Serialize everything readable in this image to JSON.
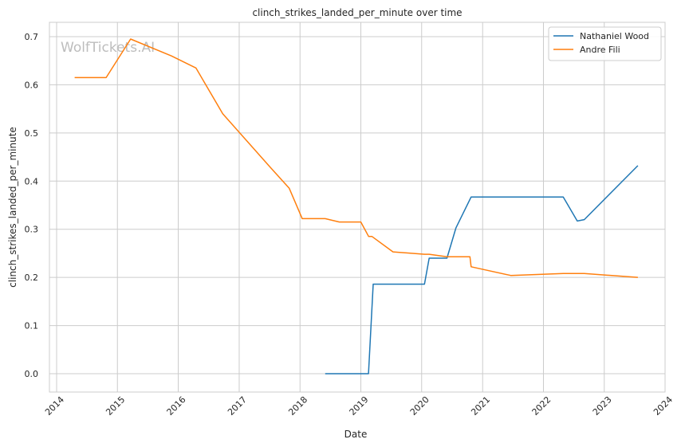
{
  "chart_data": {
    "type": "line",
    "title": "clinch_strikes_landed_per_minute over time",
    "xlabel": "Date",
    "ylabel": "clinch_strikes_landed_per_minute",
    "watermark": "WolfTickets.AI",
    "xlim": [
      "2014-01-01",
      "2024-01-01"
    ],
    "ylim": [
      0.0,
      0.7
    ],
    "x_ticks": [
      "2014",
      "2015",
      "2016",
      "2017",
      "2018",
      "2019",
      "2020",
      "2021",
      "2022",
      "2023",
      "2024"
    ],
    "y_ticks": [
      "0.0",
      "0.1",
      "0.2",
      "0.3",
      "0.4",
      "0.5",
      "0.6",
      "0.7"
    ],
    "grid": true,
    "legend_position": "top-right",
    "series": [
      {
        "name": "Nathaniel Wood",
        "color": "#1f77b4",
        "points": [
          [
            "2018-06-01",
            0.0
          ],
          [
            "2019-02-16",
            0.0
          ],
          [
            "2019-03-16",
            0.186
          ],
          [
            "2020-01-18",
            0.186
          ],
          [
            "2020-02-15",
            0.24
          ],
          [
            "2020-06-01",
            0.24
          ],
          [
            "2020-07-25",
            0.303
          ],
          [
            "2020-10-24",
            0.367
          ],
          [
            "2022-04-30",
            0.367
          ],
          [
            "2022-07-23",
            0.317
          ],
          [
            "2022-09-03",
            0.32
          ],
          [
            "2023-07-22",
            0.432
          ]
        ]
      },
      {
        "name": "Andre Fili",
        "color": "#ff7f0e",
        "points": [
          [
            "2014-04-19",
            0.615
          ],
          [
            "2014-10-25",
            0.615
          ],
          [
            "2015-03-21",
            0.695
          ],
          [
            "2015-11-21",
            0.66
          ],
          [
            "2016-04-16",
            0.635
          ],
          [
            "2016-09-24",
            0.54
          ],
          [
            "2017-07-08",
            0.428
          ],
          [
            "2017-10-28",
            0.385
          ],
          [
            "2018-01-14",
            0.322
          ],
          [
            "2018-06-01",
            0.322
          ],
          [
            "2018-08-25",
            0.315
          ],
          [
            "2019-01-01",
            0.315
          ],
          [
            "2019-02-17",
            0.285
          ],
          [
            "2019-03-09",
            0.285
          ],
          [
            "2019-07-13",
            0.253
          ],
          [
            "2020-01-18",
            0.248
          ],
          [
            "2020-02-15",
            0.248
          ],
          [
            "2020-06-01",
            0.243
          ],
          [
            "2020-10-17",
            0.243
          ],
          [
            "2020-10-24",
            0.222
          ],
          [
            "2021-06-19",
            0.204
          ],
          [
            "2022-04-30",
            0.208
          ],
          [
            "2022-09-03",
            0.208
          ],
          [
            "2023-07-22",
            0.2
          ]
        ]
      }
    ]
  }
}
